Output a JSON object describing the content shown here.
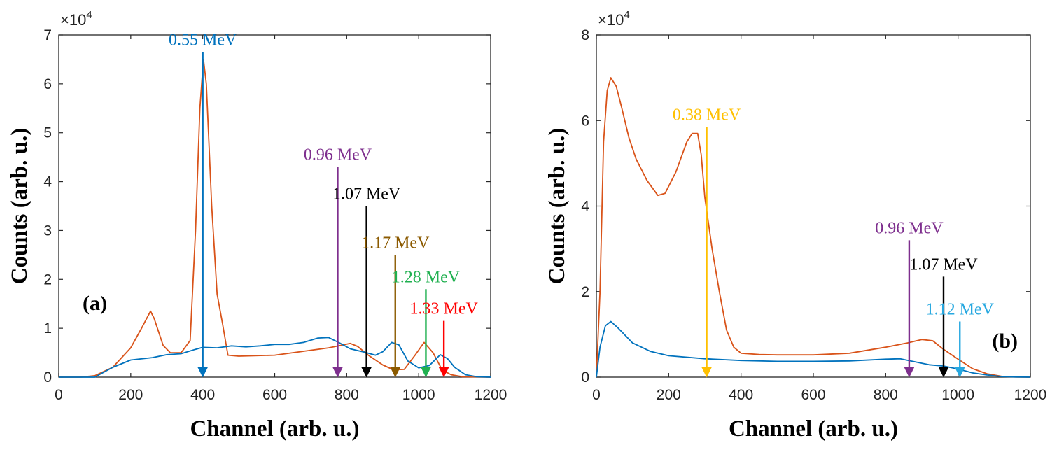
{
  "chart_data": [
    {
      "type": "line",
      "panel_label": "(a)",
      "xlabel": "Channel (arb. u.)",
      "ylabel": "Counts (arb. u.)",
      "y_exponent_base": "×10",
      "y_exponent_power": "4",
      "xlim": [
        0,
        1200
      ],
      "ylim": [
        0,
        70000
      ],
      "xticks": [
        0,
        200,
        400,
        600,
        800,
        1000,
        1200
      ],
      "yticks": [
        0,
        10000,
        20000,
        30000,
        40000,
        50000,
        60000,
        70000
      ],
      "ytick_labels": [
        "0",
        "1",
        "2",
        "3",
        "4",
        "5",
        "6",
        "7"
      ],
      "grid": false,
      "series": [
        {
          "color": "#d95319",
          "points": [
            [
              0,
              0
            ],
            [
              60,
              0
            ],
            [
              100,
              300
            ],
            [
              150,
              2000
            ],
            [
              200,
              6000
            ],
            [
              230,
              10000
            ],
            [
              255,
              13500
            ],
            [
              265,
              12000
            ],
            [
              290,
              6500
            ],
            [
              310,
              5000
            ],
            [
              340,
              5000
            ],
            [
              365,
              7500
            ],
            [
              380,
              30000
            ],
            [
              392,
              55000
            ],
            [
              402,
              65000
            ],
            [
              410,
              60000
            ],
            [
              425,
              35000
            ],
            [
              440,
              17000
            ],
            [
              455,
              11000
            ],
            [
              470,
              4500
            ],
            [
              500,
              4300
            ],
            [
              600,
              4500
            ],
            [
              700,
              5500
            ],
            [
              750,
              6000
            ],
            [
              790,
              6600
            ],
            [
              810,
              6900
            ],
            [
              830,
              6300
            ],
            [
              860,
              4500
            ],
            [
              900,
              2500
            ],
            [
              930,
              1500
            ],
            [
              960,
              1600
            ],
            [
              990,
              4500
            ],
            [
              1015,
              7100
            ],
            [
              1040,
              5000
            ],
            [
              1065,
              1500
            ],
            [
              1090,
              500
            ],
            [
              1120,
              100
            ],
            [
              1200,
              0
            ]
          ]
        },
        {
          "color": "#0072bd",
          "points": [
            [
              0,
              0
            ],
            [
              100,
              0
            ],
            [
              150,
              2000
            ],
            [
              200,
              3500
            ],
            [
              260,
              4000
            ],
            [
              300,
              4600
            ],
            [
              340,
              4800
            ],
            [
              380,
              5700
            ],
            [
              400,
              6100
            ],
            [
              440,
              6000
            ],
            [
              480,
              6400
            ],
            [
              520,
              6200
            ],
            [
              560,
              6400
            ],
            [
              600,
              6700
            ],
            [
              640,
              6700
            ],
            [
              680,
              7100
            ],
            [
              720,
              8000
            ],
            [
              750,
              8100
            ],
            [
              780,
              7000
            ],
            [
              810,
              5800
            ],
            [
              850,
              5100
            ],
            [
              880,
              4500
            ],
            [
              900,
              5200
            ],
            [
              925,
              7100
            ],
            [
              945,
              6600
            ],
            [
              970,
              3300
            ],
            [
              1000,
              1900
            ],
            [
              1030,
              2400
            ],
            [
              1060,
              4600
            ],
            [
              1080,
              3800
            ],
            [
              1100,
              2000
            ],
            [
              1130,
              500
            ],
            [
              1160,
              100
            ],
            [
              1200,
              0
            ]
          ]
        }
      ],
      "annotations": [
        {
          "label": "0.55 MeV",
          "x": 400,
          "y_top": 66500,
          "color": "#0072bd"
        },
        {
          "label": "0.96 MeV",
          "x": 775,
          "y_top": 43000,
          "color": "#7e2f8e"
        },
        {
          "label": "1.07 MeV",
          "x": 855,
          "y_top": 35000,
          "color": "#000000"
        },
        {
          "label": "1.17 MeV",
          "x": 935,
          "y_top": 25000,
          "color": "#8b5a00"
        },
        {
          "label": "1.28 MeV",
          "x": 1020,
          "y_top": 18000,
          "color": "#20b050"
        },
        {
          "label": "1.33 MeV",
          "x": 1070,
          "y_top": 11500,
          "color": "#ff0000"
        }
      ]
    },
    {
      "type": "line",
      "panel_label": "(b)",
      "xlabel": "Channel (arb. u.)",
      "ylabel": "Counts (arb. u.)",
      "y_exponent_base": "×10",
      "y_exponent_power": "4",
      "xlim": [
        0,
        1200
      ],
      "ylim": [
        0,
        80000
      ],
      "xticks": [
        0,
        200,
        400,
        600,
        800,
        1000,
        1200
      ],
      "yticks": [
        0,
        20000,
        40000,
        60000,
        80000
      ],
      "ytick_labels": [
        "0",
        "2",
        "4",
        "6",
        "8"
      ],
      "grid": false,
      "series": [
        {
          "color": "#d95319",
          "points": [
            [
              0,
              0
            ],
            [
              10,
              20000
            ],
            [
              20,
              55000
            ],
            [
              30,
              67000
            ],
            [
              40,
              70000
            ],
            [
              55,
              68000
            ],
            [
              70,
              63000
            ],
            [
              90,
              56000
            ],
            [
              110,
              51000
            ],
            [
              140,
              46000
            ],
            [
              170,
              42500
            ],
            [
              190,
              43000
            ],
            [
              220,
              48000
            ],
            [
              250,
              55000
            ],
            [
              265,
              57000
            ],
            [
              280,
              57000
            ],
            [
              290,
              52000
            ],
            [
              300,
              42000
            ],
            [
              320,
              30000
            ],
            [
              340,
              20000
            ],
            [
              360,
              11000
            ],
            [
              380,
              7000
            ],
            [
              400,
              5600
            ],
            [
              450,
              5300
            ],
            [
              500,
              5200
            ],
            [
              600,
              5200
            ],
            [
              700,
              5600
            ],
            [
              800,
              7000
            ],
            [
              860,
              8000
            ],
            [
              900,
              8800
            ],
            [
              930,
              8500
            ],
            [
              960,
              6500
            ],
            [
              1000,
              4200
            ],
            [
              1040,
              2000
            ],
            [
              1080,
              800
            ],
            [
              1120,
              200
            ],
            [
              1160,
              50
            ],
            [
              1200,
              0
            ]
          ]
        },
        {
          "color": "#0072bd",
          "points": [
            [
              0,
              0
            ],
            [
              10,
              7000
            ],
            [
              25,
              12000
            ],
            [
              40,
              13000
            ],
            [
              60,
              11500
            ],
            [
              100,
              8000
            ],
            [
              150,
              6000
            ],
            [
              200,
              5000
            ],
            [
              300,
              4300
            ],
            [
              400,
              3900
            ],
            [
              500,
              3700
            ],
            [
              600,
              3700
            ],
            [
              700,
              3800
            ],
            [
              800,
              4200
            ],
            [
              840,
              4300
            ],
            [
              880,
              3600
            ],
            [
              920,
              2900
            ],
            [
              960,
              2600
            ],
            [
              1000,
              1900
            ],
            [
              1040,
              1000
            ],
            [
              1080,
              500
            ],
            [
              1120,
              150
            ],
            [
              1160,
              50
            ],
            [
              1200,
              0
            ]
          ]
        }
      ],
      "annotations": [
        {
          "label": "0.38 MeV",
          "x": 305,
          "y_top": 58500,
          "color": "#ffc000"
        },
        {
          "label": "0.96 MeV",
          "x": 865,
          "y_top": 32000,
          "color": "#7e2f8e"
        },
        {
          "label": "1.07 MeV",
          "x": 960,
          "y_top": 23500,
          "color": "#000000"
        },
        {
          "label": "1.12 MeV",
          "x": 1005,
          "y_top": 13000,
          "color": "#27a8e0"
        }
      ]
    }
  ]
}
